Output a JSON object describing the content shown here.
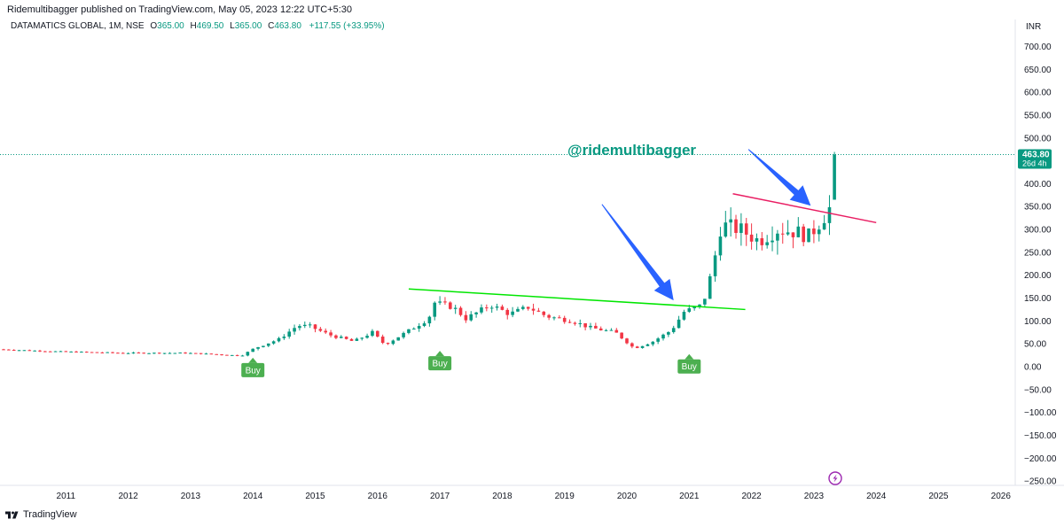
{
  "header": {
    "published_text": "Ridemultibagger published on TradingView.com, May 05, 2023 12:22 UTC+5:30"
  },
  "legend": {
    "symbol": "DATAMATICS GLOBAL, 1M, NSE",
    "open_label": "O",
    "open_value": "365.00",
    "high_label": "H",
    "high_value": "469.50",
    "low_label": "L",
    "low_value": "365.00",
    "close_label": "C",
    "close_value": "463.80",
    "change": "+117.55 (+33.95%)"
  },
  "currency": "INR",
  "last_price": {
    "price": "463.80",
    "countdown": "26d 4h"
  },
  "watermark": "@ridemultibagger",
  "buy_label": "Buy",
  "footer": {
    "brand": "TradingView"
  },
  "colors": {
    "up": "#089981",
    "down": "#f23645",
    "support_line": "#00e600",
    "resistance_line": "#e91e63",
    "arrow": "#2962ff",
    "buy_badge": "#4caf50",
    "flash_icon": "#9c27b0"
  },
  "chart_data": {
    "type": "candlestick",
    "interval": "1M",
    "x_tick_labels": [
      "2011",
      "2012",
      "2013",
      "2014",
      "2015",
      "2016",
      "2017",
      "2018",
      "2019",
      "2020",
      "2021",
      "2022",
      "2023",
      "2024",
      "2025",
      "2026"
    ],
    "y_tick_labels": [
      "700.00",
      "650.00",
      "600.00",
      "550.00",
      "500.00",
      "450.00",
      "400.00",
      "350.00",
      "300.00",
      "250.00",
      "200.00",
      "150.00",
      "100.00",
      "50.00",
      "0.00",
      "−50.00",
      "−100.00",
      "−150.00",
      "−200.00",
      "−250.00"
    ],
    "ylim": [
      -260,
      720
    ],
    "xlim": [
      2010.0,
      2026.3
    ],
    "anchors": [
      {
        "t": 2010.0,
        "v": 38
      },
      {
        "t": 2011.0,
        "v": 33
      },
      {
        "t": 2012.0,
        "v": 30
      },
      {
        "t": 2013.0,
        "v": 30
      },
      {
        "t": 2013.5,
        "v": 27
      },
      {
        "t": 2013.9,
        "v": 24
      },
      {
        "t": 2014.1,
        "v": 40
      },
      {
        "t": 2014.5,
        "v": 60
      },
      {
        "t": 2014.8,
        "v": 90
      },
      {
        "t": 2015.0,
        "v": 88
      },
      {
        "t": 2015.3,
        "v": 70
      },
      {
        "t": 2015.7,
        "v": 55
      },
      {
        "t": 2016.0,
        "v": 75
      },
      {
        "t": 2016.2,
        "v": 48
      },
      {
        "t": 2016.6,
        "v": 80
      },
      {
        "t": 2016.9,
        "v": 105
      },
      {
        "t": 2017.0,
        "v": 140
      },
      {
        "t": 2017.3,
        "v": 130
      },
      {
        "t": 2017.5,
        "v": 105
      },
      {
        "t": 2017.9,
        "v": 135
      },
      {
        "t": 2018.2,
        "v": 115
      },
      {
        "t": 2018.5,
        "v": 130
      },
      {
        "t": 2018.8,
        "v": 110
      },
      {
        "t": 2019.2,
        "v": 100
      },
      {
        "t": 2019.5,
        "v": 85
      },
      {
        "t": 2019.9,
        "v": 75
      },
      {
        "t": 2020.2,
        "v": 40
      },
      {
        "t": 2020.5,
        "v": 55
      },
      {
        "t": 2020.8,
        "v": 80
      },
      {
        "t": 2021.0,
        "v": 120
      },
      {
        "t": 2021.3,
        "v": 135
      },
      {
        "t": 2021.45,
        "v": 210
      },
      {
        "t": 2021.6,
        "v": 310
      },
      {
        "t": 2021.9,
        "v": 300
      },
      {
        "t": 2022.2,
        "v": 275
      },
      {
        "t": 2022.5,
        "v": 300
      },
      {
        "t": 2022.8,
        "v": 295
      },
      {
        "t": 2023.0,
        "v": 285
      },
      {
        "t": 2023.2,
        "v": 320
      },
      {
        "t": 2023.33,
        "v": 346
      }
    ],
    "last_candle": {
      "t": 2023.33,
      "open": 365.0,
      "high": 469.5,
      "low": 365.0,
      "close": 463.8
    },
    "support_line": {
      "t1": 2016.5,
      "v1": 170,
      "t2": 2021.9,
      "v2": 125
    },
    "resistance_line": {
      "t1": 2021.7,
      "v1": 378,
      "t2": 2024.0,
      "v2": 315
    },
    "arrows": [
      {
        "from_t": 2019.6,
        "from_v": 355,
        "to_t": 2020.75,
        "to_v": 145
      },
      {
        "from_t": 2021.95,
        "from_v": 475,
        "to_t": 2022.95,
        "to_v": 352
      }
    ],
    "buy_signals": [
      {
        "t": 2014.0,
        "v": 8
      },
      {
        "t": 2017.0,
        "v": 23
      },
      {
        "t": 2021.0,
        "v": 16
      }
    ],
    "last_price_value": 463.8
  }
}
